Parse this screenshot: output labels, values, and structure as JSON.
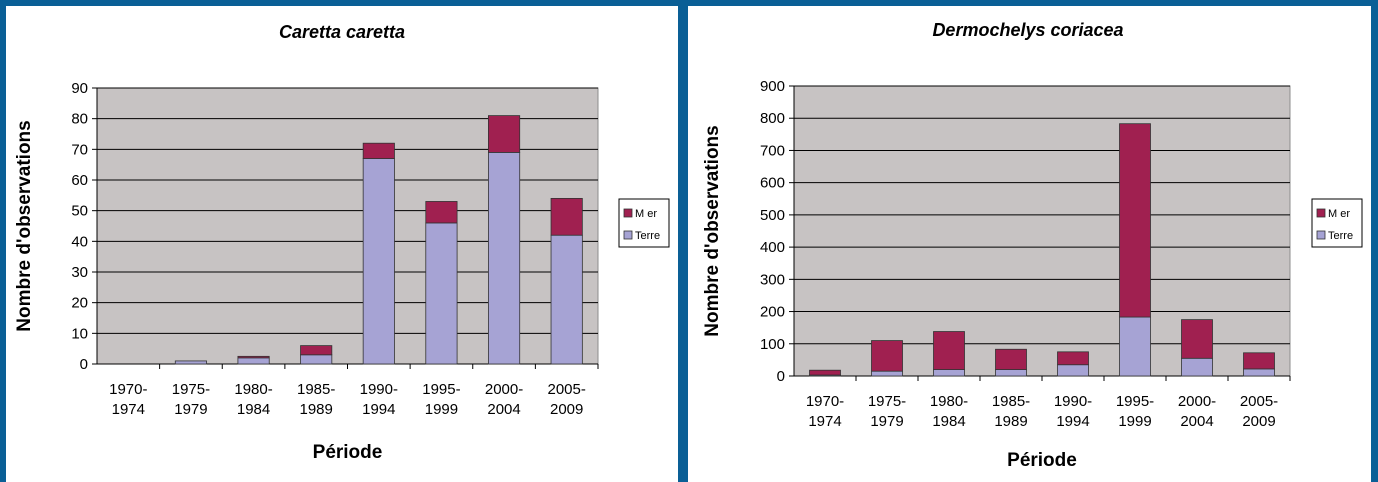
{
  "chart_data": [
    {
      "type": "bar",
      "stacked": true,
      "title": "Caretta caretta",
      "xlabel": "Période",
      "ylabel": "Nombre d'observations",
      "ylim": [
        0,
        90
      ],
      "yticks": [
        0,
        10,
        20,
        30,
        40,
        50,
        60,
        70,
        80,
        90
      ],
      "grid": true,
      "legend_position": "right",
      "categories": [
        [
          "1970-",
          "1974"
        ],
        [
          "1975-",
          "1979"
        ],
        [
          "1980-",
          "1984"
        ],
        [
          "1985-",
          "1989"
        ],
        [
          "1990-",
          "1994"
        ],
        [
          "1995-",
          "1999"
        ],
        [
          "2000-",
          "2004"
        ],
        [
          "2005-",
          "2009"
        ]
      ],
      "series": [
        {
          "name": "Terre",
          "color": "#a6a3d4",
          "values": [
            0,
            1,
            2,
            3,
            67,
            46,
            69,
            42
          ]
        },
        {
          "name": "Mer",
          "color": "#a02050",
          "values": [
            0,
            0,
            0.5,
            3,
            5,
            7,
            12,
            12
          ]
        }
      ],
      "legend": [
        "M er",
        "Terre"
      ]
    },
    {
      "type": "bar",
      "stacked": true,
      "title": "Dermochelys coriacea",
      "xlabel": "Période",
      "ylabel": "Nombre d'observations",
      "ylim": [
        0,
        900
      ],
      "yticks": [
        0,
        100,
        200,
        300,
        400,
        500,
        600,
        700,
        800,
        900
      ],
      "grid": true,
      "legend_position": "right",
      "categories": [
        [
          "1970-",
          "1974"
        ],
        [
          "1975-",
          "1979"
        ],
        [
          "1980-",
          "1984"
        ],
        [
          "1985-",
          "1989"
        ],
        [
          "1990-",
          "1994"
        ],
        [
          "1995-",
          "1999"
        ],
        [
          "2000-",
          "2004"
        ],
        [
          "2005-",
          "2009"
        ]
      ],
      "series": [
        {
          "name": "Terre",
          "color": "#a6a3d4",
          "values": [
            3,
            15,
            20,
            20,
            35,
            183,
            55,
            22
          ]
        },
        {
          "name": "Mer",
          "color": "#a02050",
          "values": [
            15,
            95,
            118,
            63,
            40,
            600,
            120,
            50
          ]
        }
      ],
      "legend": [
        "M er",
        "Terre"
      ]
    }
  ]
}
